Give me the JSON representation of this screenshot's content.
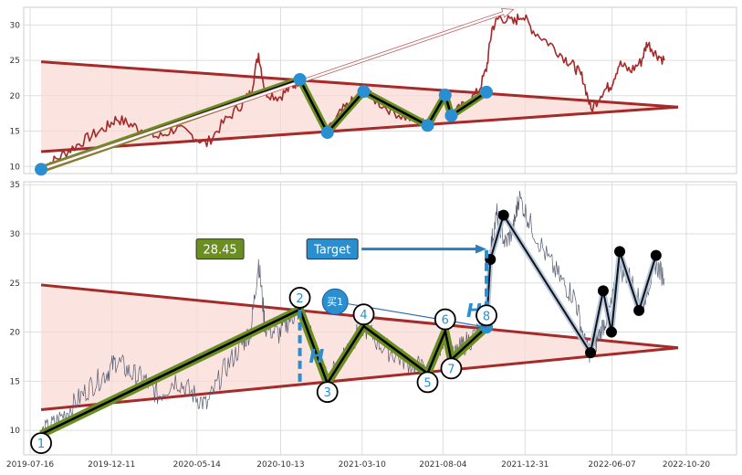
{
  "chart_data": [
    {
      "type": "line",
      "title": "",
      "ylim": [
        9,
        32.5
      ],
      "yticks": [
        10,
        15,
        20,
        25,
        30
      ],
      "grid": true,
      "colors": {
        "price": "#a52a2a",
        "wave": "#000000",
        "wave_halo": "#6b8e23",
        "pivot": "#2a8fd0",
        "triangle": "#a52a2a",
        "triangle_fill": "#f9d9d2"
      },
      "price_series": [
        [
          "2019-08-05",
          9.8
        ],
        [
          "2019-09-01",
          11.0
        ],
        [
          "2019-10-01",
          12.6
        ],
        [
          "2019-11-01",
          14.2
        ],
        [
          "2019-12-01",
          15.5
        ],
        [
          "2019-12-20",
          16.8
        ],
        [
          "2020-01-15",
          15.9
        ],
        [
          "2020-02-10",
          15.0
        ],
        [
          "2020-03-05",
          14.1
        ],
        [
          "2020-04-05",
          15.4
        ],
        [
          "2020-05-05",
          14.4
        ],
        [
          "2020-06-01",
          13.2
        ],
        [
          "2020-07-01",
          16.2
        ],
        [
          "2020-08-01",
          18.6
        ],
        [
          "2020-08-20",
          20.4
        ],
        [
          "2020-09-03",
          26.0
        ],
        [
          "2020-09-15",
          20.5
        ],
        [
          "2020-10-10",
          19.8
        ],
        [
          "2020-11-01",
          21.2
        ],
        [
          "2020-11-17",
          22.3
        ],
        [
          "2020-12-15",
          18.2
        ],
        [
          "2021-01-06",
          14.8
        ],
        [
          "2021-02-01",
          17.8
        ],
        [
          "2021-02-25",
          19.5
        ],
        [
          "2021-03-13",
          20.6
        ],
        [
          "2021-04-15",
          18.7
        ],
        [
          "2021-05-20",
          17.2
        ],
        [
          "2021-06-20",
          16.4
        ],
        [
          "2021-07-07",
          15.8
        ],
        [
          "2021-07-25",
          18.0
        ],
        [
          "2021-08-08",
          20.1
        ],
        [
          "2021-08-19",
          17.2
        ],
        [
          "2021-09-10",
          18.6
        ],
        [
          "2021-10-07",
          20.5
        ],
        [
          "2021-10-22",
          23.8
        ],
        [
          "2021-11-01",
          29.5
        ],
        [
          "2021-11-15",
          31.2
        ],
        [
          "2021-12-10",
          30.3
        ],
        [
          "2021-12-25",
          31.5
        ],
        [
          "2022-01-15",
          29.2
        ],
        [
          "2022-02-15",
          27.3
        ],
        [
          "2022-03-15",
          25.2
        ],
        [
          "2022-04-01",
          24.0
        ],
        [
          "2022-04-15",
          22.5
        ],
        [
          "2022-04-30",
          18.0
        ],
        [
          "2022-05-20",
          20.5
        ],
        [
          "2022-06-05",
          21.5
        ],
        [
          "2022-06-20",
          24.5
        ],
        [
          "2022-07-10",
          23.5
        ],
        [
          "2022-07-30",
          24.8
        ],
        [
          "2022-08-10",
          27.5
        ],
        [
          "2022-08-25",
          26.0
        ],
        [
          "2022-09-10",
          25.0
        ]
      ],
      "wave_points": [
        [
          "2019-08-05",
          9.6
        ],
        [
          "2020-11-17",
          22.3
        ],
        [
          "2021-01-06",
          14.8
        ],
        [
          "2021-03-13",
          20.6
        ],
        [
          "2021-07-07",
          15.8
        ],
        [
          "2021-08-08",
          20.1
        ],
        [
          "2021-08-19",
          17.2
        ],
        [
          "2021-10-22",
          20.5
        ]
      ],
      "triangle": {
        "upper": [
          [
            "2019-08-05",
            24.8
          ],
          [
            "2022-10-05",
            18.4
          ]
        ],
        "lower": [
          [
            "2019-08-05",
            12.1
          ],
          [
            "2022-10-05",
            18.4
          ]
        ]
      },
      "arrow": [
        [
          "2019-08-05",
          9.6
        ],
        [
          "2021-12-10",
          32.2
        ]
      ]
    },
    {
      "type": "line",
      "title": "",
      "ylim": [
        7.5,
        35.3
      ],
      "yticks": [
        10,
        15,
        20,
        25,
        30,
        35
      ],
      "xticks": [
        "2019-07-16",
        "2019-12-11",
        "2020-05-14",
        "2020-10-13",
        "2021-03-10",
        "2021-08-04",
        "2021-12-31",
        "2022-06-07",
        "2022-10-20"
      ],
      "grid": true,
      "colors": {
        "price": "#555b70",
        "wave": "#000000",
        "wave_halo": "#6b8e23",
        "future": "#111111",
        "future_halo": "#b0c4de",
        "marker_blue": "#2a8fd0",
        "triangle": "#a52a2a",
        "triangle_fill": "#f9d9d2"
      },
      "price_series": [
        [
          "2019-08-05",
          9.6
        ],
        [
          "2019-09-01",
          10.8
        ],
        [
          "2019-10-01",
          12.5
        ],
        [
          "2019-11-01",
          14.4
        ],
        [
          "2019-12-01",
          15.8
        ],
        [
          "2019-12-20",
          17.1
        ],
        [
          "2020-01-15",
          15.8
        ],
        [
          "2020-02-10",
          15.1
        ],
        [
          "2020-03-05",
          13.5
        ],
        [
          "2020-04-05",
          15.2
        ],
        [
          "2020-05-05",
          13.8
        ],
        [
          "2020-06-01",
          12.5
        ],
        [
          "2020-07-01",
          16.0
        ],
        [
          "2020-08-01",
          18.5
        ],
        [
          "2020-08-20",
          20.2
        ],
        [
          "2020-09-03",
          27.2
        ],
        [
          "2020-09-15",
          20.5
        ],
        [
          "2020-10-10",
          19.8
        ],
        [
          "2020-11-01",
          21.5
        ],
        [
          "2020-11-17",
          22.3
        ],
        [
          "2020-12-15",
          18.5
        ],
        [
          "2021-01-06",
          14.8
        ],
        [
          "2021-02-01",
          17.5
        ],
        [
          "2021-02-25",
          19.5
        ],
        [
          "2021-03-13",
          20.6
        ],
        [
          "2021-04-15",
          18.6
        ],
        [
          "2021-05-20",
          17.3
        ],
        [
          "2021-06-20",
          16.5
        ],
        [
          "2021-07-07",
          15.8
        ],
        [
          "2021-07-25",
          18.0
        ],
        [
          "2021-08-08",
          20.1
        ],
        [
          "2021-08-19",
          17.2
        ],
        [
          "2021-09-10",
          18.7
        ],
        [
          "2021-10-07",
          20.0
        ],
        [
          "2021-10-22",
          23.5
        ],
        [
          "2021-10-29",
          28.5
        ],
        [
          "2021-11-10",
          32.0
        ],
        [
          "2021-11-25",
          29.0
        ],
        [
          "2021-12-10",
          30.5
        ],
        [
          "2021-12-20",
          33.8
        ],
        [
          "2022-01-10",
          31.0
        ],
        [
          "2022-02-10",
          27.5
        ],
        [
          "2022-03-10",
          25.0
        ],
        [
          "2022-04-01",
          23.5
        ],
        [
          "2022-04-20",
          18.5
        ],
        [
          "2022-05-01",
          17.8
        ],
        [
          "2022-05-20",
          20.5
        ],
        [
          "2022-06-05",
          22.5
        ],
        [
          "2022-06-20",
          26.5
        ],
        [
          "2022-07-10",
          25.5
        ],
        [
          "2022-07-30",
          22.5
        ],
        [
          "2022-08-10",
          24.5
        ],
        [
          "2022-08-25",
          27.0
        ],
        [
          "2022-09-10",
          25.5
        ]
      ],
      "wave_points": [
        [
          "2019-08-05",
          9.6
        ],
        [
          "2020-11-17",
          22.3
        ],
        [
          "2021-01-06",
          14.8
        ],
        [
          "2021-03-13",
          20.6
        ],
        [
          "2021-07-07",
          15.8
        ],
        [
          "2021-08-08",
          20.1
        ],
        [
          "2021-08-19",
          17.2
        ],
        [
          "2021-10-22",
          20.5
        ]
      ],
      "future_points": [
        [
          "2021-10-22",
          20.5
        ],
        [
          "2021-10-29",
          27.4
        ],
        [
          "2021-11-22",
          31.9
        ],
        [
          "2022-04-29",
          17.9
        ],
        [
          "2022-05-22",
          24.2
        ],
        [
          "2022-06-06",
          20.0
        ],
        [
          "2022-06-21",
          28.2
        ],
        [
          "2022-07-26",
          22.2
        ],
        [
          "2022-08-26",
          27.8
        ]
      ],
      "pivot_labels": [
        {
          "label": "1",
          "x": "2019-08-05",
          "y": 8.7
        },
        {
          "label": "2",
          "x": "2020-11-17",
          "y": 23.5
        },
        {
          "label": "3",
          "x": "2021-01-06",
          "y": 13.9
        },
        {
          "label": "4",
          "x": "2021-03-13",
          "y": 21.8
        },
        {
          "label": "5",
          "x": "2021-07-07",
          "y": 14.9
        },
        {
          "label": "6",
          "x": "2021-08-08",
          "y": 21.3
        },
        {
          "label": "7",
          "x": "2021-08-19",
          "y": 16.3
        },
        {
          "label": "8",
          "x": "2021-10-22",
          "y": 21.7
        }
      ],
      "triangle": {
        "upper": [
          [
            "2019-08-05",
            24.8
          ],
          [
            "2022-10-05",
            18.4
          ]
        ],
        "lower": [
          [
            "2019-08-05",
            12.1
          ],
          [
            "2022-10-05",
            18.4
          ]
        ]
      },
      "h_markers": [
        {
          "text": "H",
          "x": "2020-11-17",
          "y_from": 22.3,
          "y_to": 14.8
        },
        {
          "text": "H",
          "x": "2021-10-22",
          "y_from": 21.0,
          "y_to": 28.4
        }
      ],
      "buy_marker": {
        "text": "买1",
        "x": "2021-01-20",
        "y": 23.1
      },
      "buy_line": [
        [
          "2021-01-20",
          23.1
        ],
        [
          "2021-10-22",
          20.5
        ]
      ],
      "price_box": {
        "text": "28.45",
        "x": "2020-06-25",
        "y": 28.45
      },
      "target_box": {
        "text": "Target",
        "x": "2021-01-15",
        "y": 28.45,
        "arrow_to": "2021-10-22"
      }
    }
  ]
}
